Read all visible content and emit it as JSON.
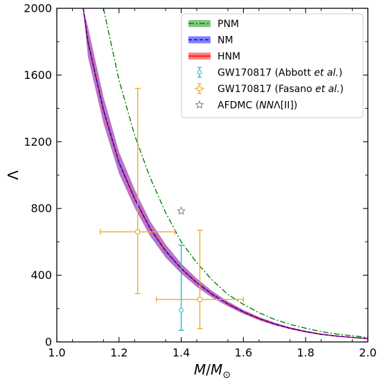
{
  "chart_data": {
    "type": "line",
    "xlabel": "M/M⊙",
    "ylabel": "Λ",
    "xlim": [
      1.0,
      2.0
    ],
    "ylim": [
      0,
      2000
    ],
    "xticks": [
      1.0,
      1.2,
      1.4,
      1.6,
      1.8,
      2.0
    ],
    "xtick_labels": [
      "1.0",
      "1.2",
      "1.4",
      "1.6",
      "1.8",
      "2.0"
    ],
    "yticks": [
      0,
      400,
      800,
      1200,
      1600,
      2000
    ],
    "ytick_labels": [
      "0",
      "400",
      "800",
      "1200",
      "1600",
      "2000"
    ],
    "grid": false,
    "legend_position": "top-right",
    "series": [
      {
        "name": "PNM",
        "style": "dash-dot",
        "color": "#008000",
        "band_color": "#7fc77f",
        "x": [
          1.15,
          1.2,
          1.25,
          1.3,
          1.35,
          1.4,
          1.45,
          1.5,
          1.55,
          1.6,
          1.65,
          1.7,
          1.75,
          1.8,
          1.85,
          1.9,
          1.95,
          2.0
        ],
        "y": [
          2000,
          1570,
          1240,
          985,
          775,
          600,
          475,
          370,
          285,
          225,
          175,
          135,
          105,
          82,
          62,
          47,
          37,
          27
        ]
      },
      {
        "name": "NM",
        "style": "dashed",
        "color": "#0000ee",
        "band_color": "#8080ff",
        "x": [
          1.085,
          1.1,
          1.15,
          1.2,
          1.25,
          1.3,
          1.35,
          1.4,
          1.45,
          1.5,
          1.55,
          1.6,
          1.65,
          1.7,
          1.75,
          1.8,
          1.85,
          1.9,
          1.95,
          2.0
        ],
        "y": [
          2000,
          1800,
          1390,
          1075,
          860,
          680,
          545,
          440,
          355,
          285,
          228,
          180,
          140,
          108,
          82,
          62,
          46,
          35,
          27,
          20
        ]
      },
      {
        "name": "HNM",
        "style": "solid",
        "color": "#ff0000",
        "band_color": "#ff8080",
        "x": [
          1.085,
          1.1,
          1.15,
          1.2,
          1.25,
          1.3,
          1.35,
          1.4,
          1.45,
          1.5,
          1.55,
          1.6,
          1.65,
          1.7,
          1.75,
          1.8,
          1.85,
          1.9,
          1.95,
          2.0
        ],
        "y": [
          2000,
          1800,
          1390,
          1075,
          860,
          680,
          545,
          440,
          355,
          285,
          228,
          180,
          140,
          108,
          82,
          62,
          46,
          35,
          27,
          20
        ]
      }
    ],
    "band": {
      "color": "#b776c6",
      "x": [
        1.085,
        1.1,
        1.15,
        1.2,
        1.25,
        1.3,
        1.35,
        1.4,
        1.45,
        1.5,
        1.55,
        1.6,
        1.65,
        1.7,
        1.75,
        1.8,
        1.85,
        1.9,
        1.95,
        2.0
      ],
      "upper": [
        2000,
        1890,
        1470,
        1140,
        915,
        725,
        585,
        470,
        380,
        305,
        243,
        192,
        150,
        116,
        88,
        67,
        50,
        38,
        29,
        22
      ],
      "lower": [
        2000,
        1710,
        1310,
        1010,
        805,
        635,
        505,
        410,
        330,
        265,
        213,
        168,
        130,
        100,
        76,
        57,
        42,
        32,
        25,
        18
      ]
    },
    "points": [
      {
        "name": "GW170817 (Abbott et al.)",
        "label_main": "GW170817 (Abbott ",
        "label_italic": "et al.",
        "label_end": ")",
        "color": "#17becf",
        "marker": "circle",
        "x": 1.4,
        "y": 190,
        "y_err_low": 120,
        "y_err_high": 390,
        "x_err": 0
      },
      {
        "name": "GW170817 (Fasano et al.)",
        "label_main": "GW170817 (Fasano ",
        "label_italic": "et al.",
        "label_end": ")",
        "color": "#f5a623",
        "marker": "square",
        "data": [
          {
            "x": 1.26,
            "y": 660,
            "x_err": 0.12,
            "y_err_low": 370,
            "y_err_high": 860
          },
          {
            "x": 1.46,
            "y": 255,
            "x_err": 0.14,
            "y_err_low": 175,
            "y_err_high": 415
          }
        ]
      },
      {
        "name": "AFDMC (NNΛ[II])",
        "label_main": "AFDMC (",
        "label_italic": "NN",
        "label_end": "Λ[II])",
        "color": "#808080",
        "marker": "star",
        "x": 1.4,
        "y": 785
      }
    ]
  }
}
